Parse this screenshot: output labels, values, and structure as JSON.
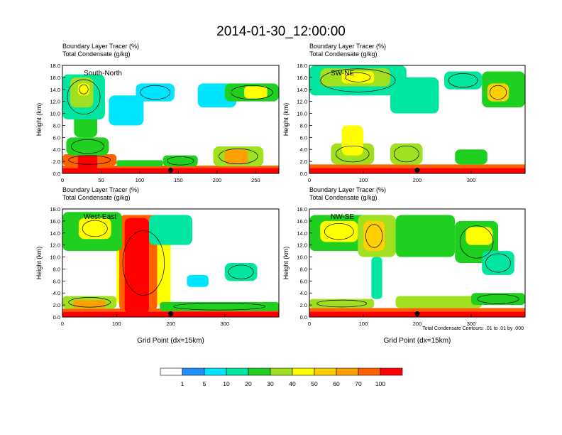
{
  "title": "2014-01-30_12:00:00",
  "colors": {
    "levels": [
      "#ffffff",
      "#1e90ff",
      "#00e5ff",
      "#00e6a0",
      "#20d020",
      "#a0e020",
      "#ffff00",
      "#ffd000",
      "#ffa000",
      "#ff6000",
      "#ff0000"
    ],
    "contour": "#000000",
    "marker": "#000000"
  },
  "legend": {
    "labels": [
      "1",
      "5",
      "10",
      "20",
      "30",
      "40",
      "50",
      "60",
      "70",
      "100"
    ]
  },
  "footnote": "Total Condensate Contours: .01 to .01 by .000",
  "chart_data": [
    {
      "type": "heatmap",
      "id": "south-north",
      "title_line1": "Boundary Layer Tracer   (%)",
      "title_line2": "Total Condensate   (g/kg)",
      "inset": "South-North",
      "ylabel": "Height (km)",
      "xlabel": "",
      "xlim": [
        0,
        280
      ],
      "ylim": [
        0,
        18
      ],
      "xticks": [
        "0",
        "50",
        "100",
        "150",
        "200",
        "250"
      ],
      "xtick_values": [
        0,
        50,
        100,
        150,
        200,
        250
      ],
      "yticks": [
        "0.0",
        "2.0",
        "4.0",
        "6.0",
        "8.0",
        "10.0",
        "12.0",
        "14.0",
        "16.0",
        "18.0"
      ],
      "marker_x": 140,
      "blobs": [
        {
          "x": [
            0,
            280
          ],
          "y": [
            0,
            0.9
          ],
          "v": 100
        },
        {
          "x": [
            0,
            280
          ],
          "y": [
            0.9,
            1.3
          ],
          "v": 70
        },
        {
          "x": [
            0,
            70
          ],
          "y": [
            1.3,
            3.2
          ],
          "v": 70
        },
        {
          "x": [
            20,
            45
          ],
          "y": [
            0,
            4.8
          ],
          "v": 100
        },
        {
          "x": [
            5,
            60
          ],
          "y": [
            3,
            6
          ],
          "v": 20
        },
        {
          "x": [
            15,
            45
          ],
          "y": [
            6,
            12
          ],
          "v": 20
        },
        {
          "x": [
            0,
            55
          ],
          "y": [
            9,
            16.5
          ],
          "v": 10
        },
        {
          "x": [
            10,
            40
          ],
          "y": [
            11,
            16
          ],
          "v": 30
        },
        {
          "x": [
            20,
            35
          ],
          "y": [
            13,
            15
          ],
          "v": 40
        },
        {
          "x": [
            60,
            105
          ],
          "y": [
            8,
            13
          ],
          "v": 5
        },
        {
          "x": [
            95,
            145
          ],
          "y": [
            12,
            15
          ],
          "v": 5
        },
        {
          "x": [
            175,
            225
          ],
          "y": [
            11,
            15
          ],
          "v": 5
        },
        {
          "x": [
            210,
            280
          ],
          "y": [
            12,
            15
          ],
          "v": 20
        },
        {
          "x": [
            235,
            265
          ],
          "y": [
            12.5,
            14.5
          ],
          "v": 40
        },
        {
          "x": [
            195,
            260
          ],
          "y": [
            1.2,
            4.5
          ],
          "v": 30
        },
        {
          "x": [
            210,
            240
          ],
          "y": [
            1.5,
            4
          ],
          "v": 60
        },
        {
          "x": [
            130,
            175
          ],
          "y": [
            1.2,
            3
          ],
          "v": 20
        },
        {
          "x": [
            70,
            130
          ],
          "y": [
            1.2,
            2.2
          ],
          "v": 20
        }
      ]
    },
    {
      "type": "heatmap",
      "id": "sw-ne",
      "title_line1": "Boundary Layer Tracer   (%)",
      "title_line2": "Total Condensate   (g/kg)",
      "inset": "SW-NE",
      "ylabel": "Height (km)",
      "xlabel": "",
      "xlim": [
        0,
        400
      ],
      "ylim": [
        0,
        18
      ],
      "xticks": [
        "0",
        "100",
        "200",
        "300"
      ],
      "xtick_values": [
        0,
        100,
        200,
        300
      ],
      "yticks": [
        "0.0",
        "2.0",
        "4.0",
        "6.0",
        "8.0",
        "10.0",
        "12.0",
        "14.0",
        "16.0",
        "18.0"
      ],
      "marker_x": 200,
      "blobs": [
        {
          "x": [
            0,
            400
          ],
          "y": [
            0,
            0.9
          ],
          "v": 100
        },
        {
          "x": [
            0,
            400
          ],
          "y": [
            0.9,
            1.5
          ],
          "v": 70
        },
        {
          "x": [
            40,
            120
          ],
          "y": [
            1.5,
            5
          ],
          "v": 30
        },
        {
          "x": [
            60,
            100
          ],
          "y": [
            3,
            8
          ],
          "v": 40
        },
        {
          "x": [
            150,
            210
          ],
          "y": [
            1.5,
            5
          ],
          "v": 30
        },
        {
          "x": [
            270,
            330
          ],
          "y": [
            1.5,
            4
          ],
          "v": 20
        },
        {
          "x": [
            0,
            180
          ],
          "y": [
            13,
            18
          ],
          "v": 10
        },
        {
          "x": [
            20,
            150
          ],
          "y": [
            14.5,
            17.5
          ],
          "v": 30
        },
        {
          "x": [
            60,
            120
          ],
          "y": [
            15,
            17
          ],
          "v": 40
        },
        {
          "x": [
            150,
            240
          ],
          "y": [
            10,
            16
          ],
          "v": 10
        },
        {
          "x": [
            250,
            320
          ],
          "y": [
            14,
            17
          ],
          "v": 10
        },
        {
          "x": [
            320,
            400
          ],
          "y": [
            11,
            17
          ],
          "v": 20
        },
        {
          "x": [
            330,
            370
          ],
          "y": [
            12,
            15
          ],
          "v": 50
        }
      ]
    },
    {
      "type": "heatmap",
      "id": "west-east",
      "title_line1": "Boundary Layer Tracer   (%)",
      "title_line2": "Total Condensate   (g/kg)",
      "inset": "West-East",
      "ylabel": "Height (km)",
      "xlabel": "Grid Point (dx=15km)",
      "xlim": [
        0,
        400
      ],
      "ylim": [
        0,
        18
      ],
      "xticks": [
        "0",
        "100",
        "200",
        "300"
      ],
      "xtick_values": [
        0,
        100,
        200,
        300
      ],
      "yticks": [
        "0.0",
        "2.0",
        "4.0",
        "6.0",
        "8.0",
        "10.0",
        "12.0",
        "14.0",
        "16.0",
        "18.0"
      ],
      "marker_x": 200,
      "blobs": [
        {
          "x": [
            0,
            400
          ],
          "y": [
            0,
            0.9
          ],
          "v": 100
        },
        {
          "x": [
            0,
            400
          ],
          "y": [
            0.9,
            1.4
          ],
          "v": 70
        },
        {
          "x": [
            0,
            100
          ],
          "y": [
            1.4,
            3.5
          ],
          "v": 30
        },
        {
          "x": [
            20,
            80
          ],
          "y": [
            1.5,
            2.8
          ],
          "v": 60
        },
        {
          "x": [
            100,
            200
          ],
          "y": [
            2,
            16
          ],
          "v": 40
        },
        {
          "x": [
            105,
            175
          ],
          "y": [
            1,
            17
          ],
          "v": 70
        },
        {
          "x": [
            115,
            160
          ],
          "y": [
            0.5,
            16.5
          ],
          "v": 100
        },
        {
          "x": [
            0,
            110
          ],
          "y": [
            11,
            17.5
          ],
          "v": 20
        },
        {
          "x": [
            30,
            90
          ],
          "y": [
            13,
            16.5
          ],
          "v": 40
        },
        {
          "x": [
            160,
            240
          ],
          "y": [
            12,
            17
          ],
          "v": 10
        },
        {
          "x": [
            300,
            360
          ],
          "y": [
            6,
            9
          ],
          "v": 10
        },
        {
          "x": [
            230,
            270
          ],
          "y": [
            5,
            7
          ],
          "v": 5
        },
        {
          "x": [
            180,
            400
          ],
          "y": [
            1,
            2.5
          ],
          "v": 20
        }
      ]
    },
    {
      "type": "heatmap",
      "id": "nw-se",
      "title_line1": "Boundary Layer Tracer   (%)",
      "title_line2": "Total Condensate   (g/kg)",
      "inset": "NW-SE",
      "ylabel": "Height (km)",
      "xlabel": "Grid Point (dx=15km)",
      "xlim": [
        0,
        400
      ],
      "ylim": [
        0,
        18
      ],
      "xticks": [
        "0",
        "100",
        "200",
        "300"
      ],
      "xtick_values": [
        0,
        100,
        200,
        300
      ],
      "yticks": [
        "0.0",
        "2.0",
        "4.0",
        "6.0",
        "8.0",
        "10.0",
        "12.0",
        "14.0",
        "16.0",
        "18.0"
      ],
      "marker_x": 200,
      "blobs": [
        {
          "x": [
            0,
            400
          ],
          "y": [
            0,
            0.9
          ],
          "v": 100
        },
        {
          "x": [
            0,
            400
          ],
          "y": [
            0.9,
            1.5
          ],
          "v": 70
        },
        {
          "x": [
            0,
            120
          ],
          "y": [
            1.5,
            3
          ],
          "v": 30
        },
        {
          "x": [
            160,
            320
          ],
          "y": [
            1.5,
            3.5
          ],
          "v": 30
        },
        {
          "x": [
            300,
            400
          ],
          "y": [
            2,
            4
          ],
          "v": 20
        },
        {
          "x": [
            0,
            120
          ],
          "y": [
            11,
            17
          ],
          "v": 20
        },
        {
          "x": [
            20,
            90
          ],
          "y": [
            12.5,
            16
          ],
          "v": 40
        },
        {
          "x": [
            90,
            160
          ],
          "y": [
            10,
            17
          ],
          "v": 30
        },
        {
          "x": [
            100,
            140
          ],
          "y": [
            11,
            16
          ],
          "v": 50
        },
        {
          "x": [
            160,
            270
          ],
          "y": [
            10,
            17
          ],
          "v": 20
        },
        {
          "x": [
            270,
            350
          ],
          "y": [
            9,
            16
          ],
          "v": 20
        },
        {
          "x": [
            290,
            340
          ],
          "y": [
            12,
            15
          ],
          "v": 40
        },
        {
          "x": [
            320,
            380
          ],
          "y": [
            7,
            11
          ],
          "v": 10
        },
        {
          "x": [
            115,
            135
          ],
          "y": [
            3,
            10
          ],
          "v": 10
        }
      ]
    }
  ]
}
